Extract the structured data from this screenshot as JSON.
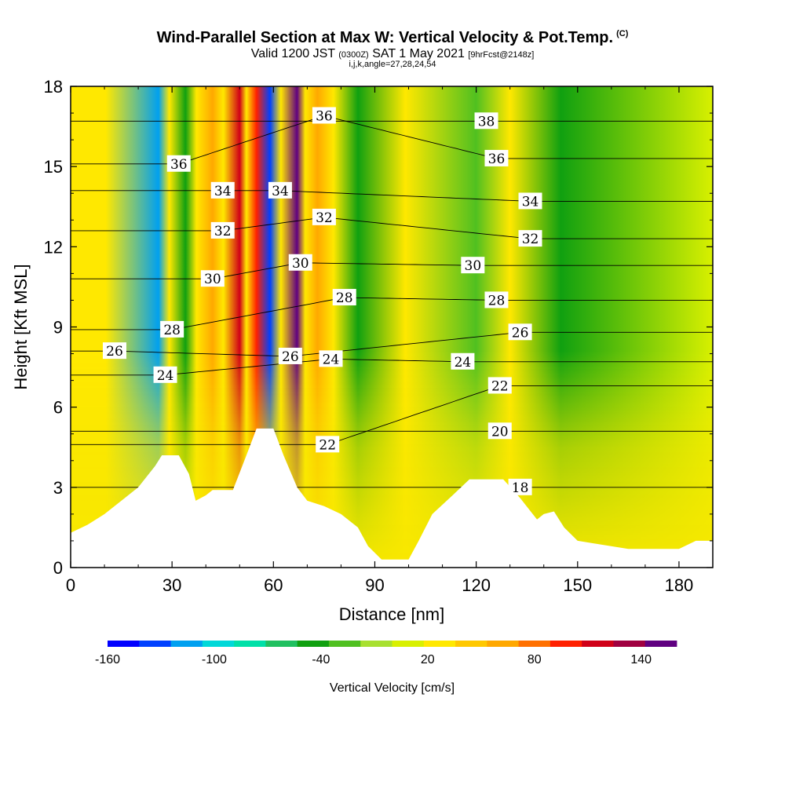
{
  "title": "Wind-Parallel Section at Max W: Vertical Velocity & Pot.Temp.",
  "copyright": "(C)",
  "subtitle": {
    "a": "Valid 1200 JST",
    "b": "(0300Z)",
    "c": "SAT 1 May 2021",
    "d": "[9hrFcst@2148z]"
  },
  "params": "i,j,k,angle=27,28,24,54",
  "chart_data": {
    "type": "heatmap",
    "xlabel": "Distance [nm]",
    "ylabel": "Height [Kft MSL]",
    "xlim": [
      0,
      190
    ],
    "ylim": [
      0,
      18
    ],
    "x_ticks": [
      "0",
      "30",
      "60",
      "90",
      "120",
      "150",
      "180"
    ],
    "y_ticks": [
      "0",
      "3",
      "6",
      "9",
      "12",
      "15",
      "18"
    ],
    "colorbar": {
      "label": "Vertical Velocity [cm/s]",
      "tick_labels": [
        "-160",
        "-100",
        "-40",
        "20",
        "80",
        "140"
      ],
      "range": [
        -160,
        160
      ],
      "colors": [
        "#0000ff",
        "#0040ff",
        "#00a0f0",
        "#00d8d8",
        "#00e0a8",
        "#20c060",
        "#10a010",
        "#50c020",
        "#a8e030",
        "#d8f000",
        "#ffe800",
        "#ffc800",
        "#ffa800",
        "#ff7000",
        "#ff2000",
        "#d00018",
        "#a00040",
        "#600080"
      ]
    },
    "terrain_profile": [
      [
        0,
        1.3
      ],
      [
        5,
        1.6
      ],
      [
        10,
        2.0
      ],
      [
        15,
        2.5
      ],
      [
        20,
        3.0
      ],
      [
        25,
        3.8
      ],
      [
        27,
        4.2
      ],
      [
        32,
        4.2
      ],
      [
        35,
        3.5
      ],
      [
        37,
        2.5
      ],
      [
        40,
        2.7
      ],
      [
        42,
        2.9
      ],
      [
        48,
        2.9
      ],
      [
        52,
        4.2
      ],
      [
        55,
        5.2
      ],
      [
        60,
        5.2
      ],
      [
        63,
        4.2
      ],
      [
        67,
        3.0
      ],
      [
        70,
        2.5
      ],
      [
        75,
        2.3
      ],
      [
        80,
        2.0
      ],
      [
        85,
        1.5
      ],
      [
        88,
        0.8
      ],
      [
        92,
        0.3
      ],
      [
        100,
        0.3
      ],
      [
        103,
        1.0
      ],
      [
        107,
        2.0
      ],
      [
        113,
        2.7
      ],
      [
        118,
        3.3
      ],
      [
        128,
        3.3
      ],
      [
        133,
        2.6
      ],
      [
        138,
        1.8
      ],
      [
        140,
        2.0
      ],
      [
        143,
        2.1
      ],
      [
        146,
        1.5
      ],
      [
        150,
        1.0
      ],
      [
        155,
        0.9
      ],
      [
        165,
        0.7
      ],
      [
        180,
        0.7
      ],
      [
        185,
        1.0
      ],
      [
        190,
        1.0
      ]
    ],
    "vertical_velocity_bands": [
      {
        "x": 26,
        "w": -120
      },
      {
        "x": 34,
        "w": -40
      },
      {
        "x": 42,
        "w": 60
      },
      {
        "x": 50,
        "w": 120
      },
      {
        "x": 55,
        "w": 100
      },
      {
        "x": 59,
        "w": -140
      },
      {
        "x": 67,
        "w": 160
      },
      {
        "x": 73,
        "w": 60
      },
      {
        "x": 85,
        "w": -40
      },
      {
        "x": 120,
        "w": -30
      },
      {
        "x": 145,
        "w": -40
      }
    ],
    "theta_contour_labels": [
      {
        "text": "36",
        "x": 32,
        "y": 15.1
      },
      {
        "text": "34",
        "x": 45,
        "y": 14.1
      },
      {
        "text": "34",
        "x": 62,
        "y": 14.1
      },
      {
        "text": "36",
        "x": 75,
        "y": 16.9
      },
      {
        "text": "32",
        "x": 45,
        "y": 12.6
      },
      {
        "text": "32",
        "x": 75,
        "y": 13.1
      },
      {
        "text": "30",
        "x": 42,
        "y": 10.8
      },
      {
        "text": "30",
        "x": 68,
        "y": 11.4
      },
      {
        "text": "28",
        "x": 30,
        "y": 8.9
      },
      {
        "text": "28",
        "x": 81,
        "y": 10.1
      },
      {
        "text": "26",
        "x": 13,
        "y": 8.1
      },
      {
        "text": "26",
        "x": 65,
        "y": 7.9
      },
      {
        "text": "24",
        "x": 28,
        "y": 7.2
      },
      {
        "text": "24",
        "x": 77,
        "y": 7.8
      },
      {
        "text": "22",
        "x": 76,
        "y": 4.6
      },
      {
        "text": "38",
        "x": 123,
        "y": 16.7
      },
      {
        "text": "36",
        "x": 126,
        "y": 15.3
      },
      {
        "text": "34",
        "x": 136,
        "y": 13.7
      },
      {
        "text": "32",
        "x": 136,
        "y": 12.3
      },
      {
        "text": "30",
        "x": 119,
        "y": 11.3
      },
      {
        "text": "28",
        "x": 126,
        "y": 10.0
      },
      {
        "text": "26",
        "x": 133,
        "y": 8.8
      },
      {
        "text": "24",
        "x": 116,
        "y": 7.7
      },
      {
        "text": "22",
        "x": 127,
        "y": 6.8
      },
      {
        "text": "20",
        "x": 127,
        "y": 5.1
      },
      {
        "text": "18",
        "x": 133,
        "y": 3.0
      }
    ]
  }
}
